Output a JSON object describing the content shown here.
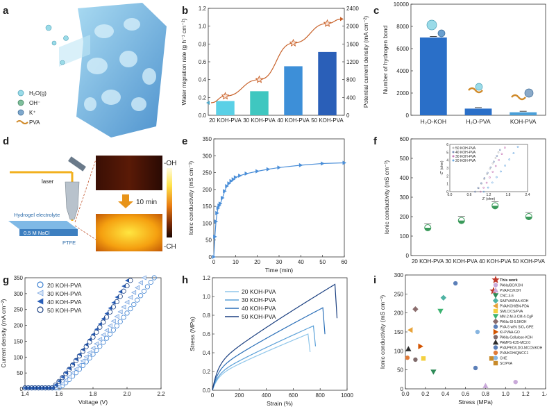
{
  "panels": {
    "a": "a",
    "b": "b",
    "c": "c",
    "d": "d",
    "e": "e",
    "f": "f",
    "g": "g",
    "h": "h",
    "i": "i"
  },
  "panel_a": {
    "legend": [
      {
        "label": "H₂O(g)",
        "icon": "water-molecule-icon"
      },
      {
        "label": "OH⁻",
        "icon": "hydroxide-ion-icon"
      },
      {
        "label": "K⁺",
        "icon": "potassium-ion-icon"
      },
      {
        "label": "PVA",
        "icon": "pva-chain-icon"
      }
    ]
  },
  "panel_d": {
    "laser": "laser",
    "hydrogel": "Hydrogel electrolyte",
    "nacl": "0.5 M NaCl",
    "ptfe": "PTFE",
    "time": "10 min",
    "oh": "-OH",
    "ch": "-CH"
  },
  "colors": {
    "sky": "#5ad0e6",
    "teal": "#3fc7c0",
    "blue": "#3d8fd8",
    "navy": "#2a5fb8",
    "orange": "#c8622a"
  },
  "chart_data": [
    {
      "id": "b",
      "type": "bar+line",
      "categories": [
        "20 KOH-PVA",
        "30 KOH-PVA",
        "40 KOH-PVA",
        "50 KOH-PVA"
      ],
      "series": [
        {
          "name": "Water migration rate",
          "values": [
            0.16,
            0.27,
            0.55,
            0.71
          ],
          "colors": [
            "#5ad0e6",
            "#3fc7c0",
            "#3d8fd8",
            "#2a5fb8"
          ]
        },
        {
          "name": "Potential current density",
          "values": [
            430,
            800,
            1620,
            2060
          ]
        }
      ],
      "ylabel": "Water migration rate (g h⁻¹ cm⁻²)",
      "ylim": [
        0,
        1.2
      ],
      "yticks": [
        "0.0",
        "0.2",
        "0.4",
        "0.6",
        "0.8",
        "1.0",
        "1.2"
      ],
      "y2label": "Potential current density (mA cm⁻²)",
      "y2lim": [
        0,
        2400
      ],
      "y2ticks": [
        "0",
        "400",
        "800",
        "1200",
        "1600",
        "2000",
        "2400"
      ]
    },
    {
      "id": "c",
      "type": "bar",
      "categories": [
        "H₂O-KOH",
        "H₂O-PVA",
        "KOH-PVA"
      ],
      "values": [
        7000,
        600,
        270
      ],
      "ylabel": "Number of hydrogen bond",
      "ylim": [
        0,
        10000
      ],
      "yticks": [
        "0",
        "2000",
        "4000",
        "6000",
        "8000",
        "10000"
      ]
    },
    {
      "id": "e",
      "type": "line",
      "x": [
        0,
        0.5,
        1,
        1.5,
        2,
        2.5,
        3,
        4,
        5,
        6,
        7,
        8,
        9,
        10,
        12,
        15,
        20,
        25,
        30,
        40,
        50,
        60
      ],
      "y": [
        0,
        60,
        105,
        130,
        145,
        152,
        158,
        175,
        195,
        210,
        218,
        225,
        230,
        236,
        241,
        247,
        254,
        260,
        265,
        272,
        277,
        279
      ],
      "xlabel": "Time (min)",
      "ylabel": "Ionic conductivity (mS cm⁻¹)",
      "xlim": [
        0,
        60
      ],
      "ylim": [
        0,
        350
      ],
      "xticks": [
        "0",
        "10",
        "20",
        "30",
        "40",
        "50",
        "60"
      ],
      "yticks": [
        "0",
        "50",
        "100",
        "150",
        "200",
        "250",
        "300",
        "350"
      ]
    },
    {
      "id": "f",
      "type": "scatter",
      "categories": [
        "20 KOH-PVA",
        "30 KOH-PVA",
        "40 KOH-PVA",
        "50 KOH-PVA"
      ],
      "values": [
        143,
        180,
        256,
        200
      ],
      "ylabel": "Ionic conductivity (mS cm⁻¹)",
      "ylim": [
        0,
        600
      ],
      "yticks": [
        "0",
        "100",
        "200",
        "300",
        "400",
        "500",
        "600"
      ],
      "inset": {
        "xlabel": "Z' (ohm)",
        "ylabel": "-Z'' (ohm)",
        "xticks": [
          "0.0",
          "0.6",
          "1.2",
          "1.8",
          "2.4"
        ],
        "yticks": [
          "0",
          "1",
          "2",
          "3",
          "4",
          "5",
          "6"
        ],
        "legend": [
          "50 KOH-PVA",
          "40 KOH-PVA",
          "30 KOH-PVA",
          "20 KOH-PVA"
        ],
        "series": [
          {
            "name": "50 KOH-PVA",
            "x0": 0.8,
            "x1": 1.5,
            "y1": 5.0
          },
          {
            "name": "40 KOH-PVA",
            "x0": 0.78,
            "x1": 1.55,
            "y1": 5.3
          },
          {
            "name": "30 KOH-PVA",
            "x0": 0.95,
            "x1": 1.7,
            "y1": 5.6
          },
          {
            "name": "20 KOH-PVA",
            "x0": 1.05,
            "x1": 2.1,
            "y1": 5.7
          }
        ]
      }
    },
    {
      "id": "g",
      "type": "line",
      "xlabel": "Voltage (V)",
      "ylabel": "Current density (mA cm⁻²)",
      "xlim": [
        1.4,
        2.2
      ],
      "ylim": [
        0,
        350
      ],
      "xticks": [
        "1.4",
        "1.6",
        "1.8",
        "2.0",
        "2.2"
      ],
      "yticks": [
        "0",
        "50",
        "100",
        "150",
        "200",
        "250",
        "300",
        "350"
      ],
      "series": [
        {
          "name": "20 KOH-PVA",
          "onset": 1.6,
          "end": 2.16
        },
        {
          "name": "30 KOH-PVA",
          "onset": 1.59,
          "end": 2.1
        },
        {
          "name": "40 KOH-PVA",
          "onset": 1.56,
          "end": 2.01
        },
        {
          "name": "50 KOH-PVA",
          "onset": 1.56,
          "end": 2.03
        }
      ]
    },
    {
      "id": "h",
      "type": "line",
      "xlabel": "Strain (%)",
      "ylabel": "Stress (MPa)",
      "xlim": [
        0,
        1000
      ],
      "ylim": [
        0,
        1.2
      ],
      "xticks": [
        "0",
        "200",
        "400",
        "600",
        "800",
        "1000"
      ],
      "yticks": [
        "0.0",
        "0.2",
        "0.4",
        "0.6",
        "0.8",
        "1.0",
        "1.2"
      ],
      "series": [
        {
          "name": "20 KOH-PVA",
          "break_strain": 710,
          "max_stress": 0.6
        },
        {
          "name": "30 KOH-PVA",
          "break_strain": 755,
          "max_stress": 0.69
        },
        {
          "name": "40 KOH-PVA",
          "break_strain": 820,
          "max_stress": 0.88
        },
        {
          "name": "50 KOH-PVA",
          "break_strain": 910,
          "max_stress": 1.13
        }
      ]
    },
    {
      "id": "i",
      "type": "scatter",
      "xlabel": "Stress (MPa)",
      "ylabel": "Ionic conductivity (mS cm⁻¹)",
      "xlim": [
        0,
        1.4
      ],
      "ylim": [
        0,
        300
      ],
      "xticks": [
        "0.0",
        "0.2",
        "0.4",
        "0.6",
        "0.8",
        "1.0",
        "1.2",
        "1.4"
      ],
      "yticks": [
        "0",
        "50",
        "100",
        "150",
        "200",
        "250",
        "300"
      ],
      "points": [
        {
          "label": "This work",
          "x": 0.88,
          "y": 258,
          "color": "#c0392b",
          "shape": "star"
        },
        {
          "label": "PANa/BC/KOH",
          "x": 1.1,
          "y": 18,
          "color": "#c9a9d9",
          "shape": "circle"
        },
        {
          "label": "PVA/KC/KOH",
          "x": 0.8,
          "y": 8,
          "color": "#c9a9d9",
          "shape": "triangle"
        },
        {
          "label": "CNC-3-6",
          "x": 0.28,
          "y": 45,
          "color": "#2e8b57",
          "shape": "tri-down"
        },
        {
          "label": "SA/PVA/PAA-KOH",
          "x": 0.38,
          "y": 240,
          "color": "#4fb3a3",
          "shape": "diamond"
        },
        {
          "label": "PVA/KOH/BN-PDA",
          "x": 0.05,
          "y": 155,
          "color": "#e8a33a",
          "shape": "tri-left"
        },
        {
          "label": "SMLC/CS/PVA",
          "x": 0.18,
          "y": 80,
          "color": "#f4d03f",
          "shape": "square"
        },
        {
          "label": "MM-2-M-3-CM-4-CgP",
          "x": 0.35,
          "y": 205,
          "color": "#3cb371",
          "shape": "tri-down"
        },
        {
          "label": "PANa-SI-5.5KOH",
          "x": 0.1,
          "y": 210,
          "color": "#8b6d6d",
          "shape": "diamond"
        },
        {
          "label": "PVA-5 wt% SiO₂ GPE",
          "x": 0.5,
          "y": 278,
          "color": "#5b7fb8",
          "shape": "circle"
        },
        {
          "label": "KI-PVAA-GO",
          "x": 0.15,
          "y": 112,
          "color": "#d35400",
          "shape": "tri-right"
        },
        {
          "label": "PANa-Cellulose-KOH",
          "x": 0.1,
          "y": 77,
          "color": "#7f6a6a",
          "shape": "circle"
        },
        {
          "label": "PAMPS-K25-MC2.0",
          "x": 0.03,
          "y": 105,
          "color": "#2c2c2c",
          "shape": "triangle"
        },
        {
          "label": "PVA/PEO/LDO-MCC5/KOH",
          "x": 0.7,
          "y": 55,
          "color": "#5b7fb8",
          "shape": "circle"
        },
        {
          "label": "PVA/KOH/QMCC1",
          "x": 0.02,
          "y": 82,
          "color": "#e07b39",
          "shape": "circle"
        },
        {
          "label": "CHE",
          "x": 0.72,
          "y": 150,
          "color": "#87b5e0",
          "shape": "circle"
        },
        {
          "label": "SC/PVA",
          "x": 0.86,
          "y": 80,
          "color": "#c88a2a",
          "shape": "square"
        }
      ]
    }
  ]
}
